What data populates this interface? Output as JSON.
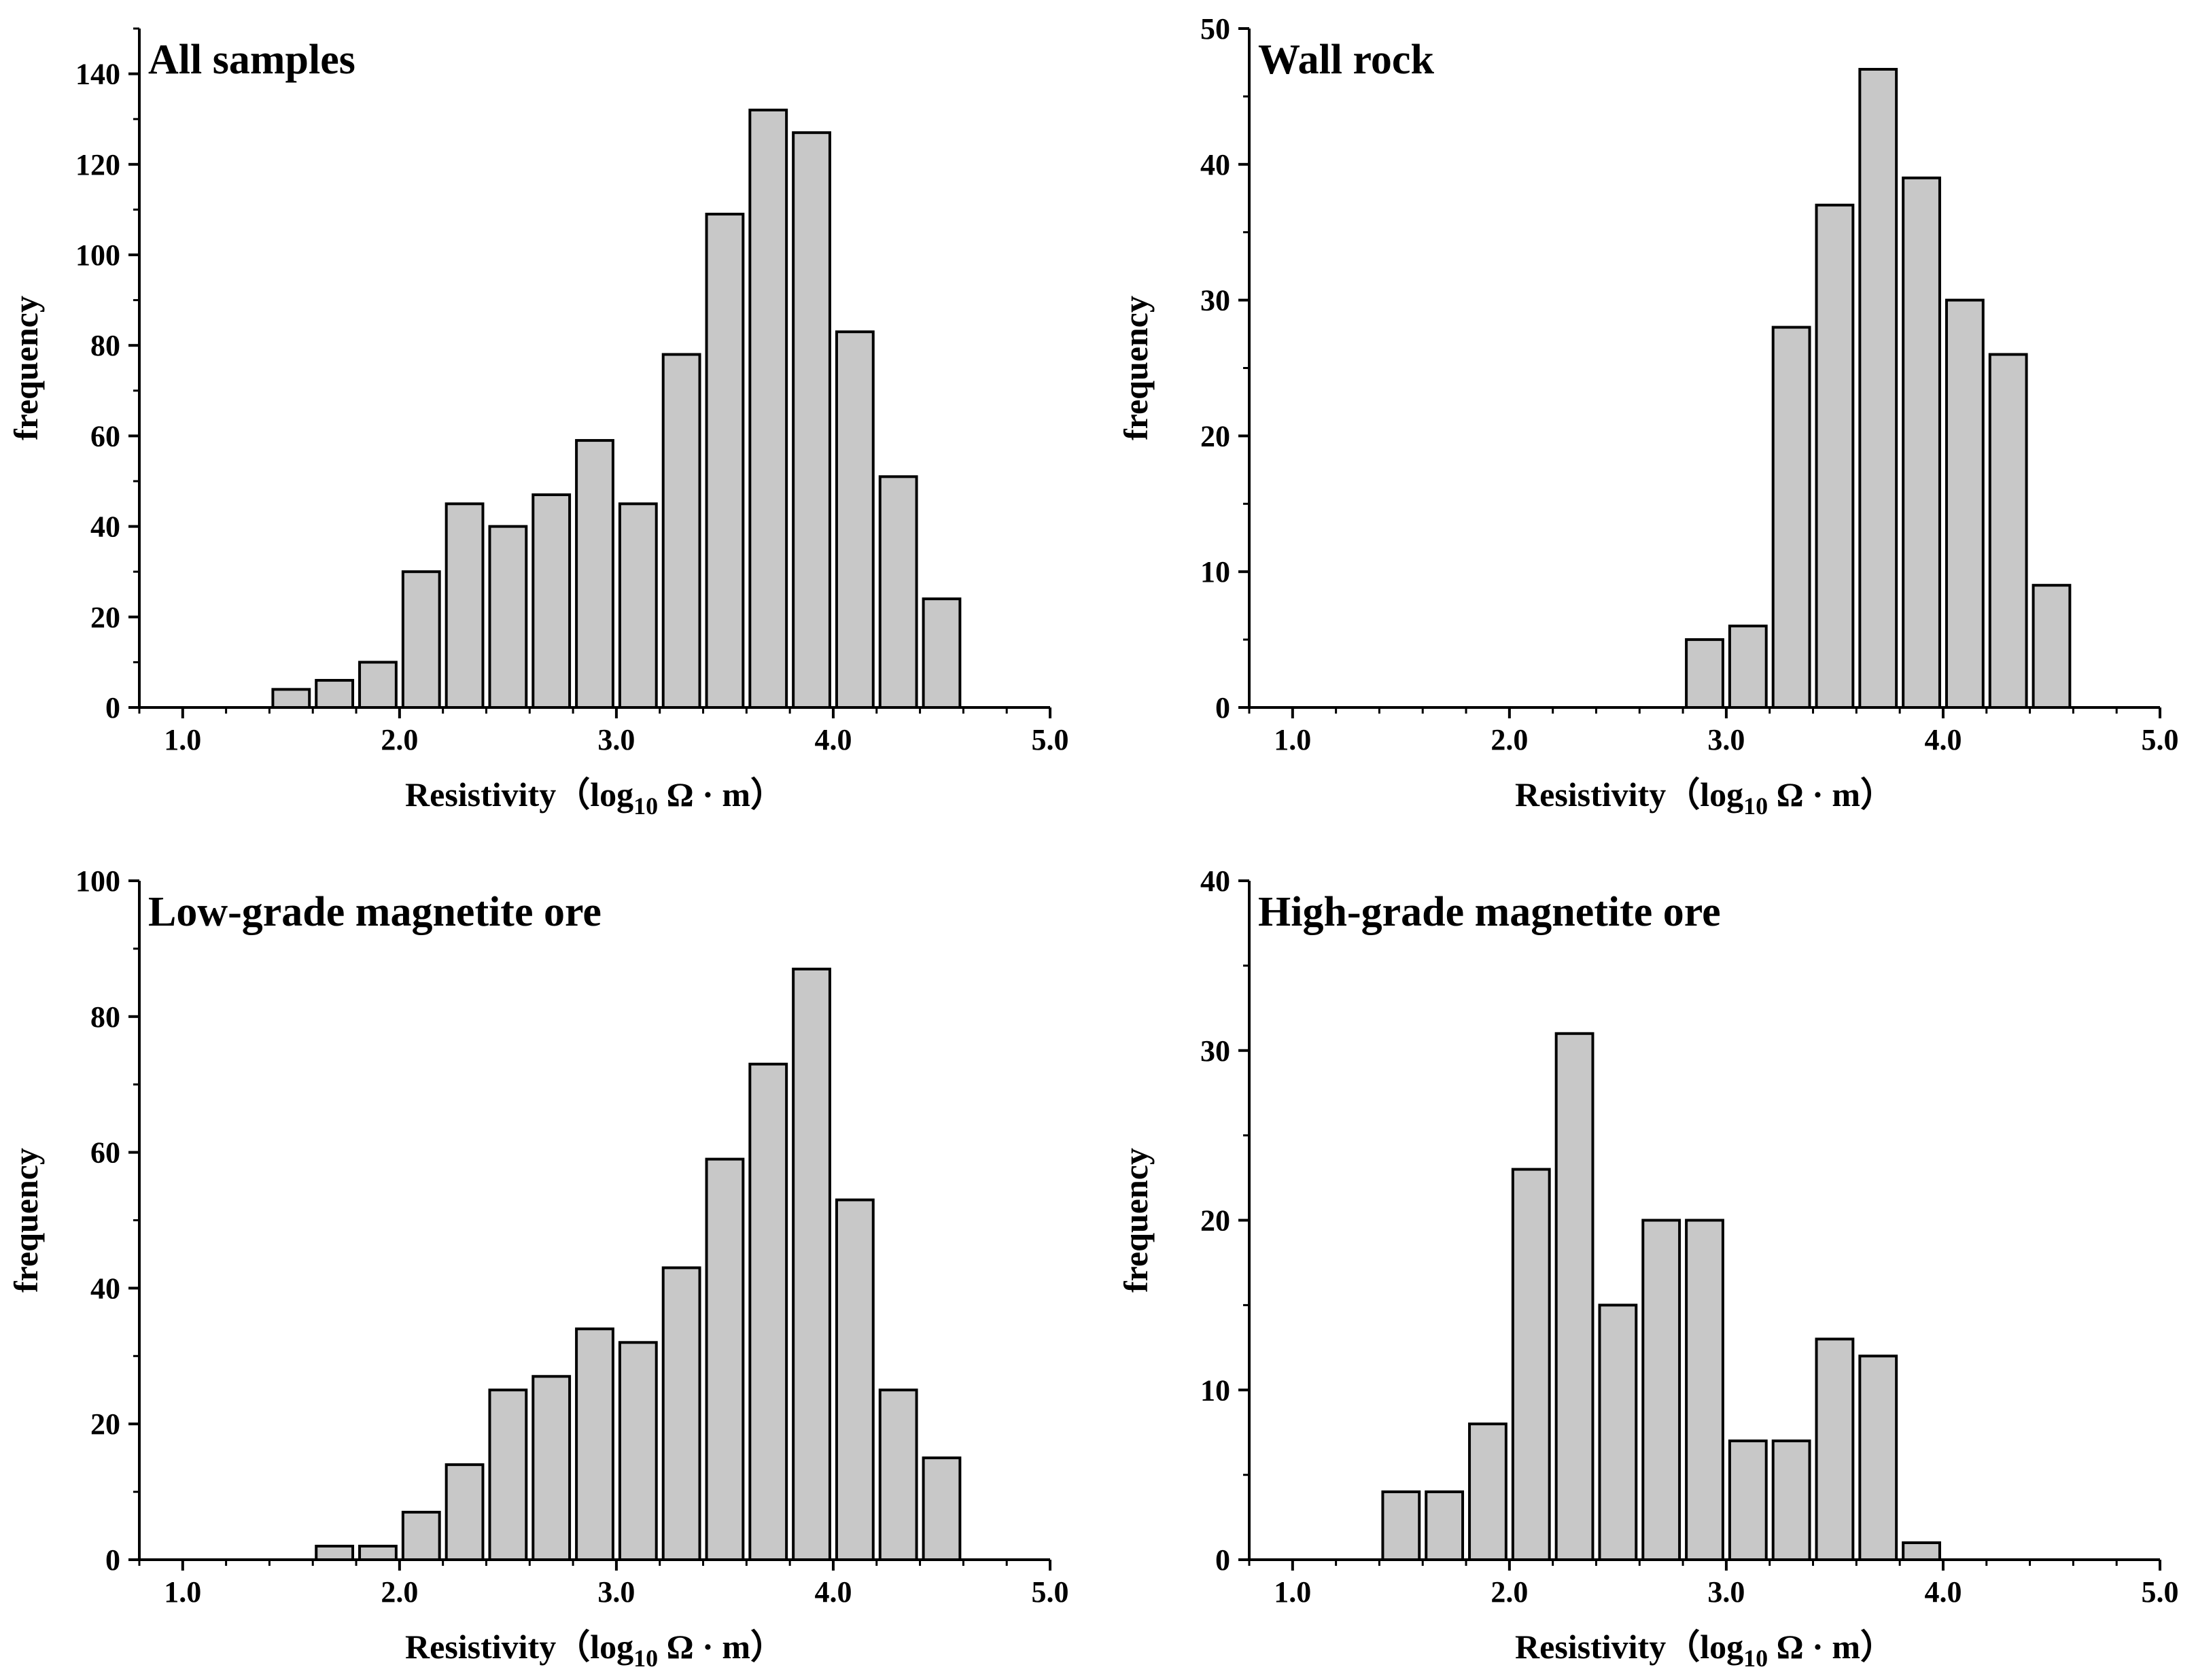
{
  "chart_data": [
    {
      "type": "bar",
      "title": "All samples",
      "xlabel": "Resistivity（log10 Ω · m）",
      "xlabel_parts": {
        "prefix": "Resistivity（log",
        "subscript": "10",
        "suffix": " Ω · m）"
      },
      "ylabel": "frequency",
      "xlim": [
        0.8,
        5.0
      ],
      "ylim": [
        0,
        150
      ],
      "xticks": [
        1.0,
        2.0,
        3.0,
        4.0,
        5.0
      ],
      "xtick_labels": [
        "1.0",
        "2.0",
        "3.0",
        "4.0",
        "5.0"
      ],
      "yticks": [
        0,
        20,
        40,
        60,
        80,
        100,
        120,
        140
      ],
      "ytick_labels": [
        "0",
        "20",
        "40",
        "60",
        "80",
        "100",
        "120",
        "140"
      ],
      "bin_width": 0.2,
      "bin_starts": [
        1.4,
        1.6,
        1.8,
        2.0,
        2.2,
        2.4,
        2.6,
        2.8,
        3.0,
        3.2,
        3.4,
        3.6,
        3.8,
        4.0,
        4.2,
        4.4
      ],
      "values": [
        4,
        6,
        10,
        30,
        45,
        40,
        47,
        59,
        45,
        78,
        109,
        132,
        127,
        83,
        51,
        24
      ]
    },
    {
      "type": "bar",
      "title": "Wall rock",
      "xlabel": "Resistivity（log10 Ω · m）",
      "xlabel_parts": {
        "prefix": "Resistivity（log",
        "subscript": "10",
        "suffix": " Ω · m）"
      },
      "ylabel": "frequency",
      "xlim": [
        0.8,
        5.0
      ],
      "ylim": [
        0,
        50
      ],
      "xticks": [
        1.0,
        2.0,
        3.0,
        4.0,
        5.0
      ],
      "xtick_labels": [
        "1.0",
        "2.0",
        "3.0",
        "4.0",
        "5.0"
      ],
      "yticks": [
        0,
        10,
        20,
        30,
        40,
        50
      ],
      "ytick_labels": [
        "0",
        "10",
        "20",
        "30",
        "40",
        "50"
      ],
      "bin_width": 0.2,
      "bin_starts": [
        2.8,
        3.0,
        3.2,
        3.4,
        3.6,
        3.8,
        4.0,
        4.2,
        4.4
      ],
      "values": [
        5,
        6,
        28,
        37,
        47,
        39,
        30,
        26,
        9
      ]
    },
    {
      "type": "bar",
      "title": "Low-grade magnetite ore",
      "xlabel": "Resistivity（log10 Ω · m）",
      "xlabel_parts": {
        "prefix": "Resistivity（log",
        "subscript": "10",
        "suffix": " Ω · m）"
      },
      "ylabel": "frequency",
      "xlim": [
        0.8,
        5.0
      ],
      "ylim": [
        0,
        100
      ],
      "xticks": [
        1.0,
        2.0,
        3.0,
        4.0,
        5.0
      ],
      "xtick_labels": [
        "1.0",
        "2.0",
        "3.0",
        "4.0",
        "5.0"
      ],
      "yticks": [
        0,
        20,
        40,
        60,
        80,
        100
      ],
      "ytick_labels": [
        "0",
        "20",
        "40",
        "60",
        "80",
        "100"
      ],
      "bin_width": 0.2,
      "bin_starts": [
        1.6,
        1.8,
        2.0,
        2.2,
        2.4,
        2.6,
        2.8,
        3.0,
        3.2,
        3.4,
        3.6,
        3.8,
        4.0,
        4.2,
        4.4
      ],
      "values": [
        2,
        2,
        7,
        14,
        25,
        27,
        34,
        32,
        43,
        59,
        73,
        87,
        53,
        25,
        15
      ]
    },
    {
      "type": "bar",
      "title": "High-grade magnetite ore",
      "xlabel": "Resistivity（log10 Ω · m）",
      "xlabel_parts": {
        "prefix": "Resistivity（log",
        "subscript": "10",
        "suffix": " Ω · m）"
      },
      "ylabel": "frequency",
      "xlim": [
        0.8,
        5.0
      ],
      "ylim": [
        0,
        40
      ],
      "xticks": [
        1.0,
        2.0,
        3.0,
        4.0,
        5.0
      ],
      "xtick_labels": [
        "1.0",
        "2.0",
        "3.0",
        "4.0",
        "5.0"
      ],
      "yticks": [
        0,
        10,
        20,
        30,
        40
      ],
      "ytick_labels": [
        "0",
        "10",
        "20",
        "30",
        "40"
      ],
      "bin_width": 0.2,
      "bin_starts": [
        1.4,
        1.6,
        1.8,
        2.0,
        2.2,
        2.4,
        2.6,
        2.8,
        3.0,
        3.2,
        3.4,
        3.6,
        3.8
      ],
      "values": [
        4,
        4,
        8,
        23,
        31,
        15,
        20,
        20,
        7,
        7,
        13,
        12,
        1
      ]
    }
  ],
  "colors": {
    "bar_fill": "#c8c8c8",
    "bar_stroke": "#000000",
    "background": "#ffffff"
  }
}
